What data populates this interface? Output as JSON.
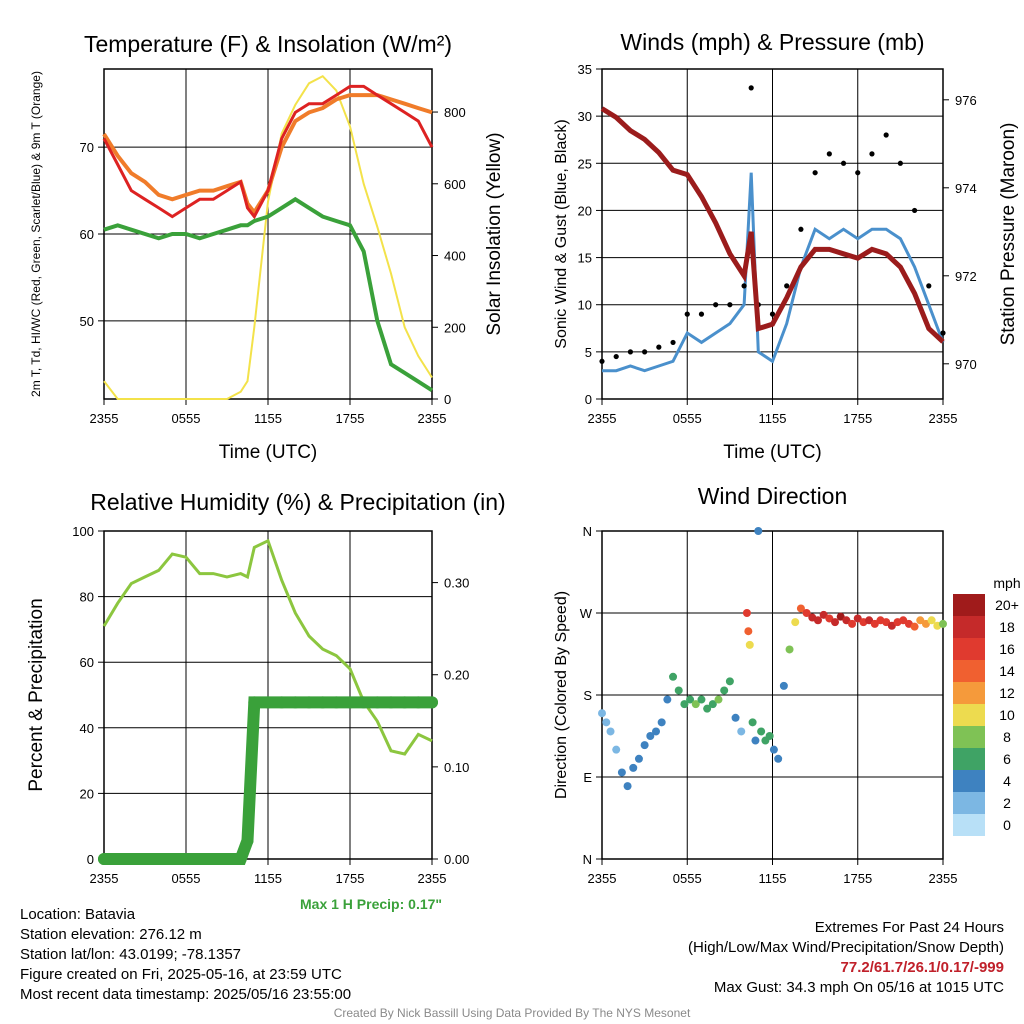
{
  "chart_data": [
    {
      "type": "line",
      "title": "Temperature (F) & Insolation (W/m²)",
      "xlabel": "Time (UTC)",
      "ylabel": "2m T, Td, HI/WC (Red, Green, Scarlet/Blue) & 9m T (Orange)",
      "ylabel2": "Solar Insolation (Yellow)",
      "x_ticks": [
        "2355",
        "0555",
        "1155",
        "1755",
        "2355"
      ],
      "ylim": [
        41,
        79
      ],
      "y_ticks": [
        50,
        60,
        70
      ],
      "ylim2": [
        0,
        920
      ],
      "y2_ticks": [
        0,
        200,
        400,
        600,
        800
      ],
      "grid": true,
      "x_hours": [
        0,
        1,
        2,
        3,
        4,
        5,
        6,
        7,
        8,
        9,
        10,
        10.5,
        11,
        12,
        13,
        14,
        15,
        16,
        17,
        18,
        19,
        20,
        21,
        22,
        23,
        24
      ],
      "series": [
        {
          "color": "#dd2222",
          "values": [
            71,
            68,
            65,
            64,
            63,
            62,
            63,
            64,
            64,
            65,
            66,
            63,
            62,
            65,
            71,
            74,
            75,
            75,
            76,
            77,
            77,
            76,
            75,
            74,
            73,
            70
          ]
        },
        {
          "color": "#f07c2a",
          "values": [
            71.5,
            69,
            67,
            66,
            64.5,
            64,
            64.5,
            65,
            65,
            65.5,
            66,
            63.5,
            62.5,
            65,
            70,
            73,
            74,
            74.5,
            75.5,
            76,
            76,
            76,
            75.5,
            75,
            74.5,
            74
          ]
        },
        {
          "color": "#3aa13a",
          "values": [
            60.5,
            61,
            60.5,
            60,
            59.5,
            60,
            60,
            59.5,
            60,
            60.5,
            61,
            61,
            61.5,
            62,
            63,
            64,
            63,
            62,
            61.5,
            61,
            58,
            50,
            45,
            44,
            43,
            42
          ]
        },
        {
          "color": "#f3e24a",
          "values": [
            50,
            0,
            0,
            0,
            0,
            0,
            0,
            0,
            0,
            0,
            20,
            50,
            200,
            550,
            740,
            820,
            880,
            900,
            860,
            760,
            600,
            480,
            350,
            200,
            120,
            60
          ]
        }
      ]
    },
    {
      "type": "scatter",
      "title": "Winds (mph) & Pressure (mb)",
      "xlabel": "Time (UTC)",
      "ylabel": "Sonic Wind & Gust (Blue, Black)",
      "ylabel2": "Station Pressure (Maroon)",
      "x_ticks": [
        "2355",
        "0555",
        "1155",
        "1755",
        "2355"
      ],
      "ylim": [
        0,
        35
      ],
      "y_ticks": [
        0,
        5,
        10,
        15,
        20,
        25,
        30,
        35
      ],
      "ylim2": [
        969.2,
        976.7
      ],
      "y2_ticks": [
        970,
        972,
        974,
        976
      ],
      "grid": true,
      "x_hours": [
        0,
        1,
        2,
        3,
        4,
        5,
        6,
        7,
        8,
        9,
        10,
        10.5,
        11,
        12,
        13,
        14,
        15,
        16,
        17,
        18,
        19,
        20,
        21,
        22,
        23,
        24
      ],
      "series": [
        {
          "color": "#4a90cc",
          "values": [
            3,
            3,
            3.5,
            3,
            3.5,
            4,
            7,
            6,
            7,
            8,
            10,
            24,
            5,
            4,
            8,
            14,
            18,
            17,
            18,
            17,
            18,
            18,
            17,
            14,
            10,
            6
          ]
        },
        {
          "color": "#000000",
          "values": [
            4,
            4.5,
            5,
            5,
            5.5,
            6,
            9,
            9,
            10,
            10,
            12,
            33,
            10,
            9,
            12,
            18,
            24,
            26,
            25,
            24,
            26,
            28,
            25,
            20,
            12,
            7
          ]
        },
        {
          "color": "#9b1c1c",
          "values": [
            975.8,
            975.6,
            975.3,
            975.1,
            974.8,
            974.4,
            974.3,
            973.8,
            973.2,
            972.5,
            972,
            973,
            970.8,
            970.9,
            971.5,
            972.2,
            972.6,
            972.6,
            972.5,
            972.4,
            972.6,
            972.5,
            972.2,
            971.6,
            970.8,
            970.5
          ]
        }
      ]
    },
    {
      "type": "line",
      "title": "Relative Humidity (%) & Precipitation (in)",
      "ylabel": "Percent & Precipitation",
      "x_ticks": [
        "2355",
        "0555",
        "1155",
        "1755",
        "2355"
      ],
      "ylim": [
        0,
        100
      ],
      "y_ticks": [
        0,
        20,
        40,
        60,
        80,
        100
      ],
      "ylim2": [
        0,
        0.356
      ],
      "y2_ticks": [
        "0.00",
        "0.10",
        "0.20",
        "0.30"
      ],
      "grid": true,
      "annotation": "Max 1 H Precip: 0.17\"",
      "x_hours": [
        0,
        1,
        2,
        3,
        4,
        5,
        6,
        7,
        8,
        9,
        10,
        10.5,
        11,
        12,
        13,
        14,
        15,
        16,
        17,
        18,
        19,
        20,
        21,
        22,
        23,
        24
      ],
      "series": [
        {
          "color": "#8cc63f",
          "values": [
            71,
            78,
            84,
            86,
            88,
            93,
            92,
            87,
            87,
            86,
            87,
            86,
            95,
            97,
            85,
            75,
            68,
            64,
            62,
            58,
            48,
            42,
            33,
            32,
            38,
            36
          ]
        },
        {
          "color": "#3aa13a",
          "values": [
            0,
            0,
            0,
            0,
            0,
            0,
            0,
            0,
            0,
            0,
            0,
            0.02,
            0.17,
            0.17,
            0.17,
            0.17,
            0.17,
            0.17,
            0.17,
            0.17,
            0.17,
            0.17,
            0.17,
            0.17,
            0.17,
            0.17
          ]
        }
      ]
    },
    {
      "type": "scatter",
      "title": "Wind Direction",
      "ylabel": "Direction (Colored By Speed)",
      "x_ticks": [
        "2355",
        "0555",
        "1155",
        "1755",
        "2355"
      ],
      "y_ticks": [
        "N",
        "E",
        "S",
        "W",
        "N"
      ],
      "ylim": [
        0,
        360
      ],
      "grid": true,
      "legend_title": "mph",
      "legend_labels": [
        "20+",
        "18",
        "16",
        "14",
        "12",
        "10",
        "8",
        "6",
        "4",
        "2",
        "0"
      ],
      "legend_colors": [
        "#a01b1b",
        "#c52a2a",
        "#e03a2f",
        "#f06030",
        "#f59a3b",
        "#eddb4f",
        "#7fc255",
        "#3fa365",
        "#3e82c0",
        "#7cb7e3",
        "#b8e0f7"
      ],
      "points": [
        {
          "h": 0.0,
          "dir": 160,
          "mph": 2
        },
        {
          "h": 0.3,
          "dir": 150,
          "mph": 2
        },
        {
          "h": 0.6,
          "dir": 140,
          "mph": 1
        },
        {
          "h": 1.0,
          "dir": 120,
          "mph": 2
        },
        {
          "h": 1.4,
          "dir": 95,
          "mph": 3
        },
        {
          "h": 1.8,
          "dir": 80,
          "mph": 4
        },
        {
          "h": 2.2,
          "dir": 100,
          "mph": 4
        },
        {
          "h": 2.6,
          "dir": 110,
          "mph": 3
        },
        {
          "h": 3.0,
          "dir": 125,
          "mph": 3
        },
        {
          "h": 3.4,
          "dir": 135,
          "mph": 4
        },
        {
          "h": 3.8,
          "dir": 140,
          "mph": 4
        },
        {
          "h": 4.2,
          "dir": 150,
          "mph": 4
        },
        {
          "h": 4.6,
          "dir": 175,
          "mph": 4
        },
        {
          "h": 5.0,
          "dir": 200,
          "mph": 6
        },
        {
          "h": 5.4,
          "dir": 185,
          "mph": 6
        },
        {
          "h": 5.8,
          "dir": 170,
          "mph": 5
        },
        {
          "h": 6.2,
          "dir": 175,
          "mph": 6
        },
        {
          "h": 6.6,
          "dir": 170,
          "mph": 7
        },
        {
          "h": 7.0,
          "dir": 175,
          "mph": 6
        },
        {
          "h": 7.4,
          "dir": 165,
          "mph": 6
        },
        {
          "h": 7.8,
          "dir": 170,
          "mph": 6
        },
        {
          "h": 8.2,
          "dir": 175,
          "mph": 7
        },
        {
          "h": 8.6,
          "dir": 185,
          "mph": 6
        },
        {
          "h": 9.0,
          "dir": 195,
          "mph": 6
        },
        {
          "h": 9.4,
          "dir": 155,
          "mph": 4
        },
        {
          "h": 9.8,
          "dir": 140,
          "mph": 2
        },
        {
          "h": 10.2,
          "dir": 270,
          "mph": 16
        },
        {
          "h": 10.3,
          "dir": 250,
          "mph": 13
        },
        {
          "h": 10.4,
          "dir": 235,
          "mph": 10
        },
        {
          "h": 10.6,
          "dir": 150,
          "mph": 6
        },
        {
          "h": 10.8,
          "dir": 130,
          "mph": 4
        },
        {
          "h": 11.0,
          "dir": 360,
          "mph": 3
        },
        {
          "h": 11.2,
          "dir": 140,
          "mph": 6
        },
        {
          "h": 11.5,
          "dir": 130,
          "mph": 5
        },
        {
          "h": 11.8,
          "dir": 135,
          "mph": 6
        },
        {
          "h": 12.1,
          "dir": 120,
          "mph": 4
        },
        {
          "h": 12.4,
          "dir": 110,
          "mph": 4
        },
        {
          "h": 12.8,
          "dir": 190,
          "mph": 4
        },
        {
          "h": 13.2,
          "dir": 230,
          "mph": 8
        },
        {
          "h": 13.6,
          "dir": 260,
          "mph": 10
        },
        {
          "h": 14.0,
          "dir": 275,
          "mph": 14
        },
        {
          "h": 14.4,
          "dir": 270,
          "mph": 16
        },
        {
          "h": 14.8,
          "dir": 265,
          "mph": 18
        },
        {
          "h": 15.2,
          "dir": 262,
          "mph": 17
        },
        {
          "h": 15.6,
          "dir": 268,
          "mph": 18
        },
        {
          "h": 16.0,
          "dir": 264,
          "mph": 16
        },
        {
          "h": 16.4,
          "dir": 260,
          "mph": 17
        },
        {
          "h": 16.8,
          "dir": 266,
          "mph": 19
        },
        {
          "h": 17.2,
          "dir": 262,
          "mph": 17
        },
        {
          "h": 17.6,
          "dir": 258,
          "mph": 16
        },
        {
          "h": 18.0,
          "dir": 264,
          "mph": 18
        },
        {
          "h": 18.4,
          "dir": 260,
          "mph": 16
        },
        {
          "h": 18.8,
          "dir": 262,
          "mph": 17
        },
        {
          "h": 19.2,
          "dir": 258,
          "mph": 16
        },
        {
          "h": 19.6,
          "dir": 262,
          "mph": 15
        },
        {
          "h": 20.0,
          "dir": 260,
          "mph": 16
        },
        {
          "h": 20.4,
          "dir": 256,
          "mph": 17
        },
        {
          "h": 20.8,
          "dir": 260,
          "mph": 16
        },
        {
          "h": 21.2,
          "dir": 262,
          "mph": 15
        },
        {
          "h": 21.6,
          "dir": 258,
          "mph": 16
        },
        {
          "h": 22.0,
          "dir": 255,
          "mph": 14
        },
        {
          "h": 22.4,
          "dir": 262,
          "mph": 12
        },
        {
          "h": 22.8,
          "dir": 258,
          "mph": 11
        },
        {
          "h": 23.2,
          "dir": 262,
          "mph": 10
        },
        {
          "h": 23.6,
          "dir": 256,
          "mph": 9
        },
        {
          "h": 24.0,
          "dir": 258,
          "mph": 7
        }
      ]
    }
  ],
  "info": {
    "location": "Location: Batavia",
    "elevation": "Station elevation: 276.12 m",
    "latlon": "Station lat/lon: 43.0199; -78.1357",
    "created": "Figure created on Fri, 2025-05-16, at 23:59 UTC",
    "recent": "Most recent data timestamp: 2025/05/16 23:55:00"
  },
  "extremes": {
    "title": "Extremes For Past 24 Hours",
    "subtitle": "(High/Low/Max Wind/Precipitation/Snow Depth)",
    "values": "77.2/61.7/26.1/0.17/-999",
    "gust": "Max Gust: 34.3 mph On 05/16 at 1015 UTC"
  },
  "credit": "Created By Nick Bassill Using Data Provided By The NYS Mesonet"
}
